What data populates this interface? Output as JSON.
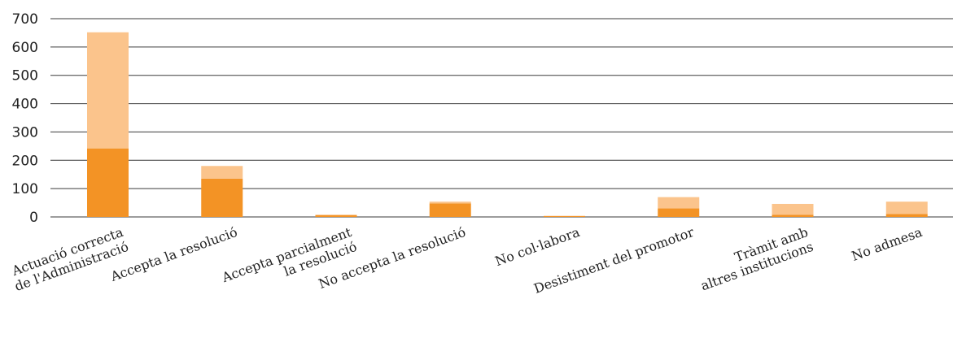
{
  "chart_data": {
    "type": "bar",
    "stacked": true,
    "categories": [
      [
        "Actuació correcta",
        "de l'Administració"
      ],
      [
        "Accepta la resolució"
      ],
      [
        "Accepta parcialment",
        "la resolució"
      ],
      [
        "No accepta la resolució"
      ],
      [
        "No col·labora"
      ],
      [
        "Desistiment del promotor"
      ],
      [
        "Tràmit amb",
        "altres institucions"
      ],
      [
        "No admesa"
      ]
    ],
    "series": [
      {
        "color": "#f39325",
        "values": [
          242,
          135,
          7,
          48,
          3,
          30,
          8,
          10
        ]
      },
      {
        "color": "#fbc48c",
        "values": [
          410,
          45,
          0,
          6,
          1,
          40,
          38,
          44
        ]
      }
    ],
    "yticks": [
      0,
      100,
      200,
      300,
      400,
      500,
      600,
      700
    ],
    "ylim": [
      0,
      700
    ],
    "grid": true,
    "title": "",
    "xlabel": "",
    "ylabel": ""
  }
}
